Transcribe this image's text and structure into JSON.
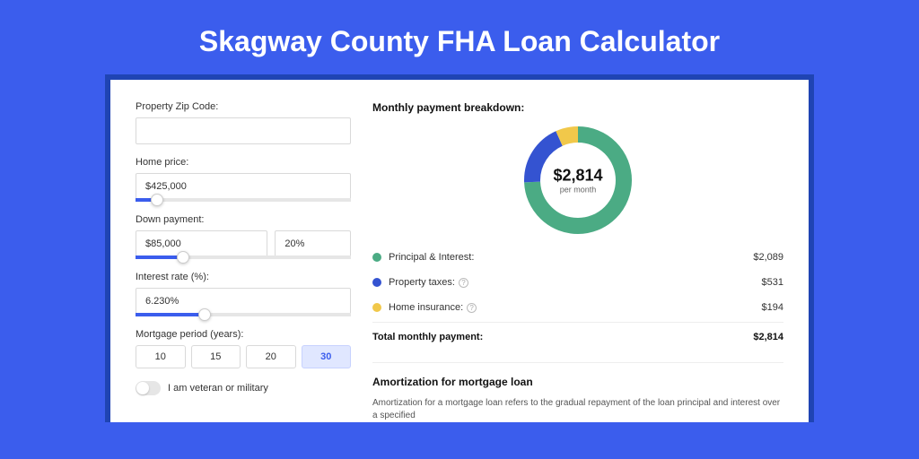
{
  "page": {
    "title": "Skagway County FHA Loan Calculator",
    "background_color": "#3b5ded",
    "panel_shadow_color": "#1f44b3",
    "panel_background": "#ffffff"
  },
  "form": {
    "zip": {
      "label": "Property Zip Code:",
      "value": ""
    },
    "price": {
      "label": "Home price:",
      "value": "$425,000",
      "slider_pct": 10
    },
    "down": {
      "label": "Down payment:",
      "value": "$85,000",
      "pct_value": "20%",
      "slider_pct": 22
    },
    "rate": {
      "label": "Interest rate (%):",
      "value": "6.230%",
      "slider_pct": 32
    },
    "period": {
      "label": "Mortgage period (years):",
      "options": [
        "10",
        "15",
        "20",
        "30"
      ],
      "selected": "30"
    },
    "veteran": {
      "label": "I am veteran or military",
      "on": false
    }
  },
  "breakdown": {
    "title": "Monthly payment breakdown:",
    "donut": {
      "amount": "$2,814",
      "sub": "per month",
      "size": 120,
      "thickness": 18,
      "segments": [
        {
          "key": "principal",
          "value": 2089,
          "color": "#4bab84"
        },
        {
          "key": "tax",
          "value": 531,
          "color": "#3453d1"
        },
        {
          "key": "insurance",
          "value": 194,
          "color": "#f1c84a"
        }
      ]
    },
    "rows": [
      {
        "dot": "#4bab84",
        "label": "Principal & Interest:",
        "value": "$2,089",
        "help": false
      },
      {
        "dot": "#3453d1",
        "label": "Property taxes:",
        "value": "$531",
        "help": true
      },
      {
        "dot": "#f1c84a",
        "label": "Home insurance:",
        "value": "$194",
        "help": true
      }
    ],
    "total": {
      "label": "Total monthly payment:",
      "value": "$2,814"
    }
  },
  "amort": {
    "title": "Amortization for mortgage loan",
    "text": "Amortization for a mortgage loan refers to the gradual repayment of the loan principal and interest over a specified"
  }
}
